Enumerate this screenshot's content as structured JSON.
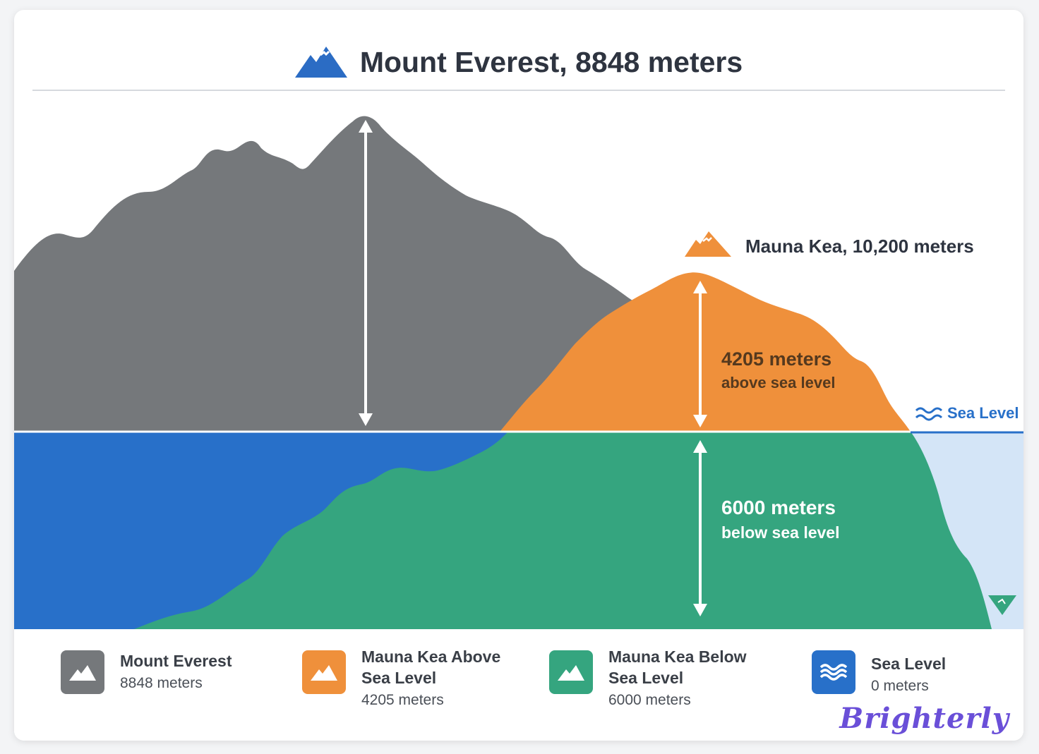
{
  "title": {
    "text": "Mount Everest, 8848 meters",
    "icon": "mountain-icon",
    "icon_color": "#2b6cc4"
  },
  "diagram": {
    "mauna_kea_label": "Mauna Kea, 10,200 meters",
    "above_value": "4205 meters",
    "above_caption": "above sea level",
    "below_value": "6000 meters",
    "below_caption": "below sea level",
    "sea_level_label": "Sea Level",
    "colors": {
      "everest": "#75787b",
      "mauna_kea_above": "#ef903b",
      "mauna_kea_below": "#35a57f",
      "ocean": "#2870c9",
      "shallow_water": "#d4e5f7",
      "sea_level_line": "#2870c9"
    }
  },
  "legend": [
    {
      "name": "Mount Everest",
      "value": "8848 meters",
      "color": "#75787b",
      "icon": "mountain-icon"
    },
    {
      "name": "Mauna Kea Above Sea Level",
      "value": "4205 meters",
      "color": "#ef903b",
      "icon": "mountain-icon"
    },
    {
      "name": "Mauna Kea Below Sea Level",
      "value": "6000 meters",
      "color": "#35a57f",
      "icon": "mountain-icon"
    },
    {
      "name": "Sea Level",
      "value": "0 meters",
      "color": "#2870c9",
      "icon": "waves-icon"
    }
  ],
  "brand": "Brighterly"
}
